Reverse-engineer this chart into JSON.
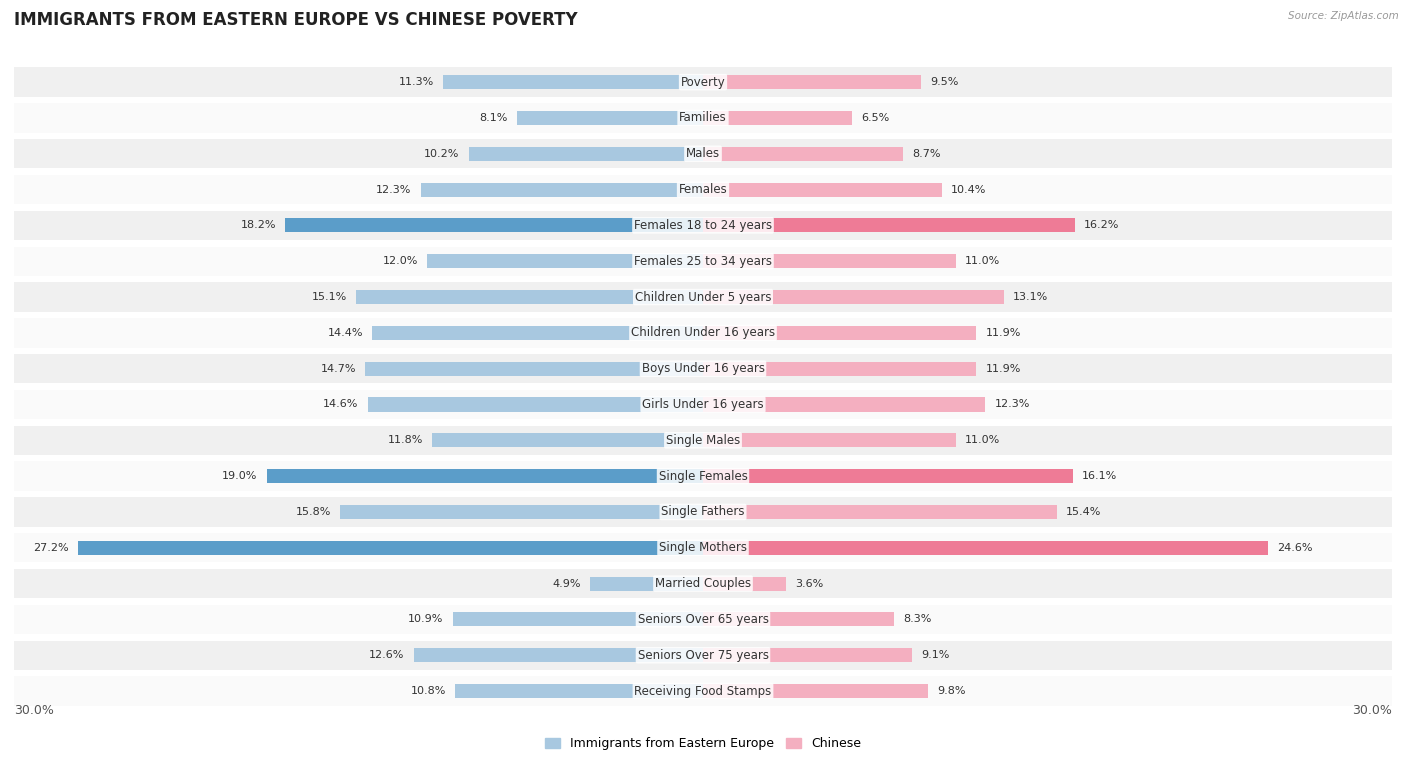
{
  "title": "IMMIGRANTS FROM EASTERN EUROPE VS CHINESE POVERTY",
  "source": "Source: ZipAtlas.com",
  "categories": [
    "Poverty",
    "Families",
    "Males",
    "Females",
    "Females 18 to 24 years",
    "Females 25 to 34 years",
    "Children Under 5 years",
    "Children Under 16 years",
    "Boys Under 16 years",
    "Girls Under 16 years",
    "Single Males",
    "Single Females",
    "Single Fathers",
    "Single Mothers",
    "Married Couples",
    "Seniors Over 65 years",
    "Seniors Over 75 years",
    "Receiving Food Stamps"
  ],
  "left_values": [
    11.3,
    8.1,
    10.2,
    12.3,
    18.2,
    12.0,
    15.1,
    14.4,
    14.7,
    14.6,
    11.8,
    19.0,
    15.8,
    27.2,
    4.9,
    10.9,
    12.6,
    10.8
  ],
  "right_values": [
    9.5,
    6.5,
    8.7,
    10.4,
    16.2,
    11.0,
    13.1,
    11.9,
    11.9,
    12.3,
    11.0,
    16.1,
    15.4,
    24.6,
    3.6,
    8.3,
    9.1,
    9.8
  ],
  "left_color_normal": "#a8c8e0",
  "left_color_highlight": "#5b9dc9",
  "right_color_normal": "#f4afc0",
  "right_color_highlight": "#ee7b96",
  "highlight_rows": [
    4,
    11,
    13
  ],
  "axis_max": 30.0,
  "legend_left": "Immigrants from Eastern Europe",
  "legend_right": "Chinese",
  "background_color": "#ffffff",
  "row_bg_even": "#f0f0f0",
  "row_bg_odd": "#fafafa",
  "title_fontsize": 12,
  "label_fontsize": 8.5,
  "value_fontsize": 8
}
